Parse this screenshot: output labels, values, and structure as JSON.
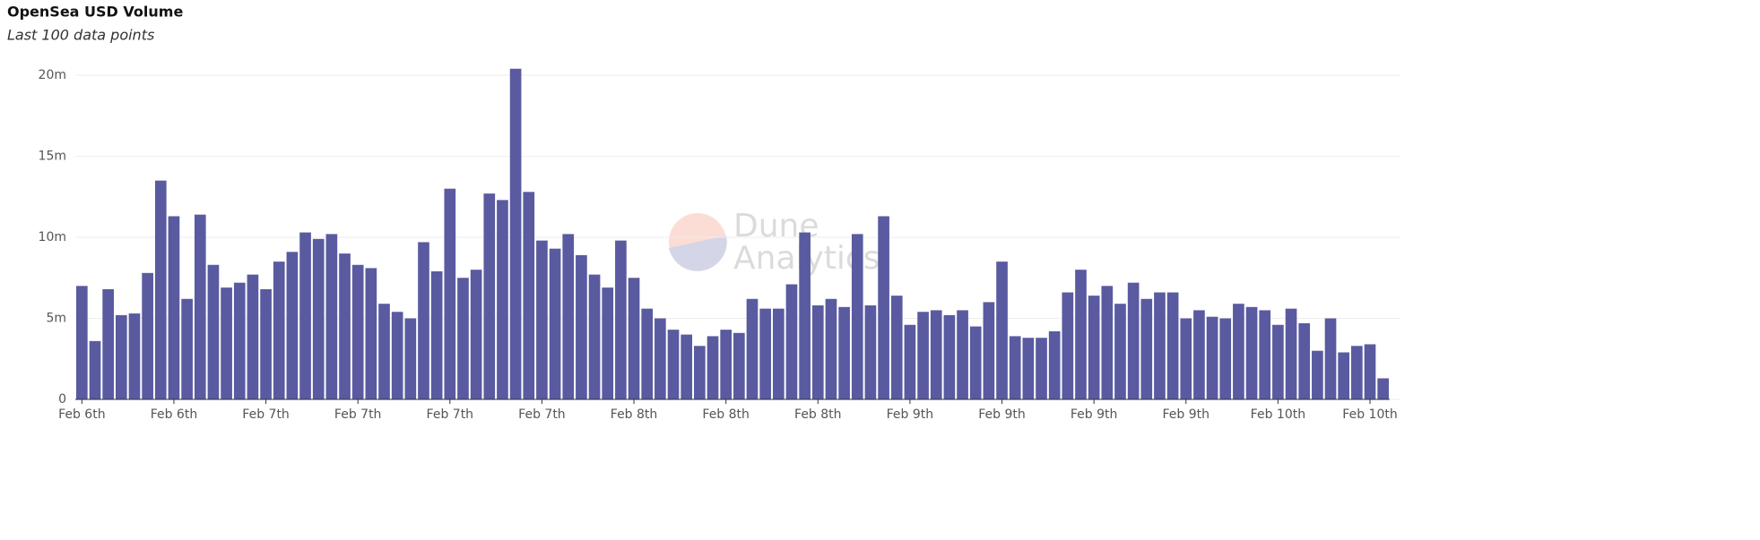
{
  "chart_data": {
    "type": "bar",
    "title": "OpenSea USD Volume",
    "subtitle": "Last 100 data points",
    "watermark": [
      "Dune",
      "Analytics"
    ],
    "color": "#5a5aa0",
    "grid": true,
    "ylim": [
      0,
      20
    ],
    "yticks": [
      0,
      {
        "value": 5,
        "label": "5m"
      },
      {
        "value": 10,
        "label": "10m"
      },
      {
        "value": 15,
        "label": "15m"
      },
      {
        "value": 20,
        "label": "20m"
      }
    ],
    "categories": [
      "Feb 6th",
      null,
      null,
      null,
      null,
      null,
      null,
      "Feb 6th",
      null,
      null,
      null,
      null,
      null,
      null,
      "Feb 7th",
      null,
      null,
      null,
      null,
      null,
      null,
      "Feb 7th",
      null,
      null,
      null,
      null,
      null,
      null,
      "Feb 7th",
      null,
      null,
      null,
      null,
      null,
      null,
      "Feb 7th",
      null,
      null,
      null,
      null,
      null,
      null,
      "Feb 8th",
      null,
      null,
      null,
      null,
      null,
      null,
      "Feb 8th",
      null,
      null,
      null,
      null,
      null,
      null,
      "Feb 8th",
      null,
      null,
      null,
      null,
      null,
      null,
      "Feb 9th",
      null,
      null,
      null,
      null,
      null,
      null,
      "Feb 9th",
      null,
      null,
      null,
      null,
      null,
      null,
      "Feb 9th",
      null,
      null,
      null,
      null,
      null,
      null,
      "Feb 9th",
      null,
      null,
      null,
      null,
      null,
      null,
      "Feb 10th",
      null,
      null,
      null,
      null,
      null,
      null,
      "Feb 10th",
      null
    ],
    "values": [
      7.0,
      3.6,
      6.8,
      5.2,
      5.3,
      7.8,
      13.5,
      11.3,
      6.2,
      11.4,
      8.3,
      6.9,
      7.2,
      7.7,
      6.8,
      8.5,
      9.1,
      10.3,
      9.9,
      10.2,
      9.0,
      8.3,
      8.1,
      5.9,
      5.4,
      5.0,
      9.7,
      7.9,
      13.0,
      7.5,
      8.0,
      12.7,
      12.3,
      20.4,
      12.8,
      9.8,
      9.3,
      10.2,
      8.9,
      7.7,
      6.9,
      9.8,
      7.5,
      5.6,
      5.0,
      4.3,
      4.0,
      3.3,
      3.9,
      4.3,
      4.1,
      6.2,
      5.6,
      5.6,
      7.1,
      10.3,
      5.8,
      6.2,
      5.7,
      10.2,
      5.8,
      11.3,
      6.4,
      4.6,
      5.4,
      5.5,
      5.2,
      5.5,
      4.5,
      6.0,
      8.5,
      3.9,
      3.8,
      3.8,
      4.2,
      6.6,
      8.0,
      6.4,
      7.0,
      5.9,
      7.2,
      6.2,
      6.6,
      6.6,
      5.0,
      5.5,
      5.1,
      5.0,
      5.9,
      5.7,
      5.5,
      4.6,
      5.6,
      4.7,
      3.0,
      5.0,
      2.9,
      3.3,
      3.4,
      1.3
    ]
  }
}
